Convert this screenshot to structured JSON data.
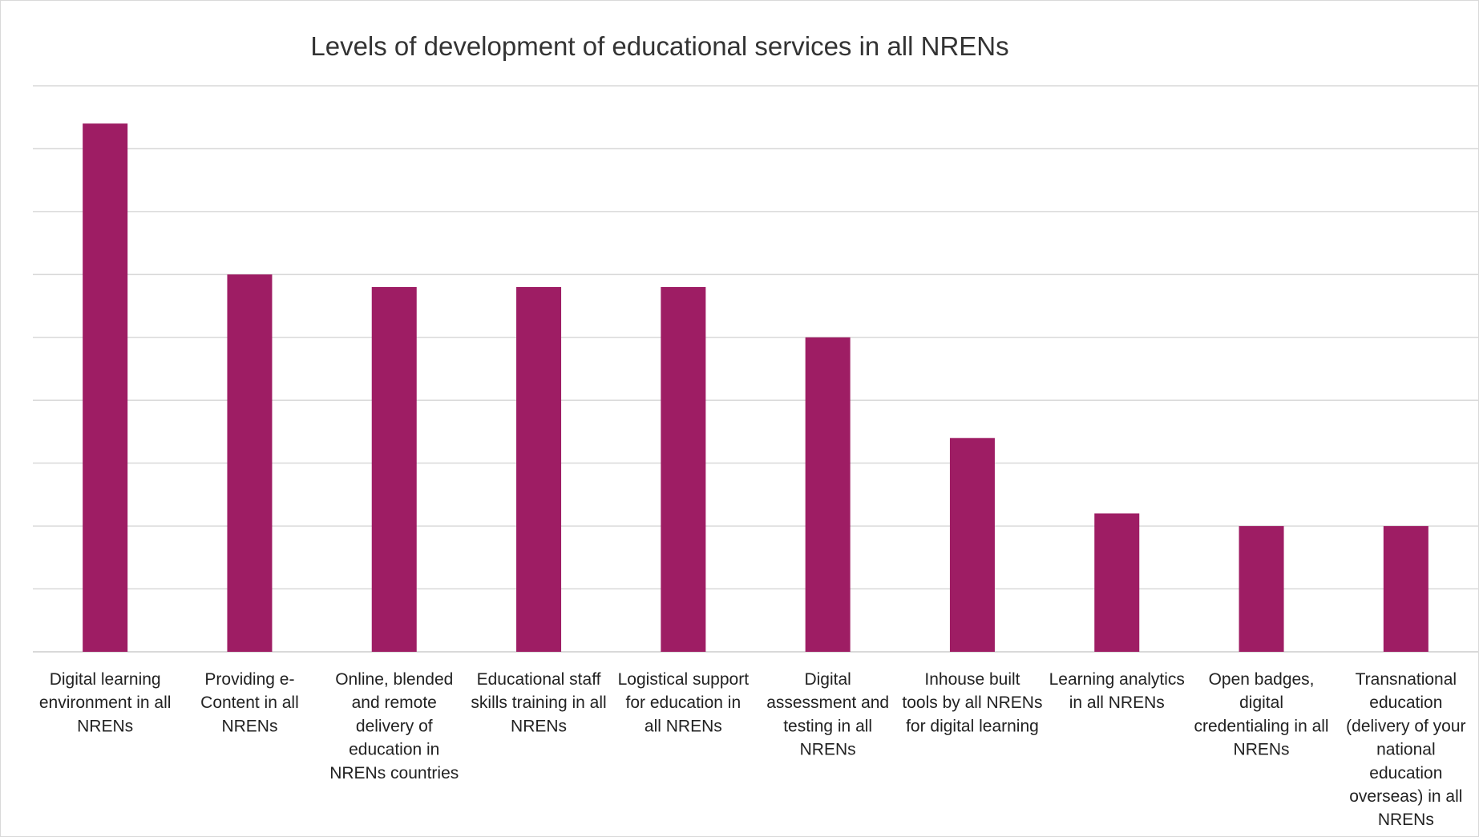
{
  "chart_data": {
    "type": "bar",
    "title": "Levels of development of educational services in all NRENs",
    "xlabel": "",
    "ylabel": "",
    "categories": [
      "Digital learning environment in all NRENs",
      "Providing e-Content in all NRENs",
      "Online, blended and remote delivery of education in NRENs countries",
      "Educational staff skills training in all NRENs",
      "Logistical support for education in all NRENs",
      "Digital assessment and testing in all NRENs",
      "Inhouse built tools by all NRENs for digital learning",
      "Learning analytics in all NRENs",
      "Open badges, digital credentialing in all NRENs",
      "Transnational education (delivery of your national education overseas) in all NRENs"
    ],
    "category_label_lines": [
      [
        "Digital learning",
        "environment in all",
        "NRENs"
      ],
      [
        "Providing e-",
        "Content in all",
        "NRENs"
      ],
      [
        "Online, blended",
        "and remote",
        "delivery of",
        "education in",
        "NRENs countries"
      ],
      [
        "Educational staff",
        "skills training in all",
        "NRENs"
      ],
      [
        "Logistical support",
        "for education in",
        "all NRENs"
      ],
      [
        "Digital",
        "assessment and",
        "testing in all",
        "NRENs"
      ],
      [
        "Inhouse built",
        "tools by all NRENs",
        "for digital learning"
      ],
      [
        "Learning analytics",
        "in all NRENs"
      ],
      [
        "Open badges,",
        "digital",
        "credentialing in all",
        "NRENs"
      ],
      [
        "Transnational",
        "education",
        "(delivery of your",
        "national",
        "education",
        "overseas) in all",
        "NRENs"
      ]
    ],
    "values": [
      8.4,
      6.0,
      5.8,
      5.8,
      5.8,
      5.0,
      3.4,
      2.2,
      2.0,
      2.0
    ],
    "ylim": [
      0,
      9
    ],
    "y_gridline_step": 1,
    "y_tick_labels_shown": false,
    "grid": true,
    "legend": "none",
    "bar_color": "#9e1d64",
    "gridline_color": "#d9d9d9"
  }
}
